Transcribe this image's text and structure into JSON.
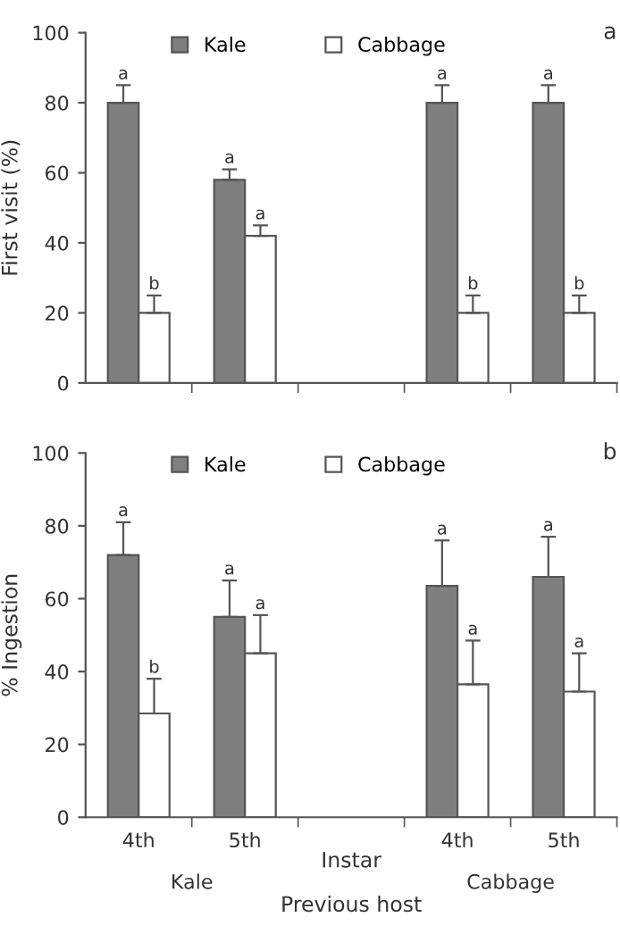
{
  "chart_data": [
    {
      "type": "bar",
      "title": "a",
      "ylabel": "First visit (%)",
      "categories": [
        null,
        null,
        null,
        null,
        null
      ],
      "ylim": [
        0,
        100
      ],
      "yticks": [
        0,
        20,
        40,
        60,
        80,
        100
      ],
      "legend": "top",
      "grid": false,
      "series": [
        {
          "name": "Kale",
          "color": "#7f7f7f",
          "values": [
            80,
            58,
            null,
            80,
            80
          ],
          "errors": [
            [
              80,
              85
            ],
            [
              58,
              61
            ],
            null,
            [
              80,
              85
            ],
            [
              80,
              85
            ]
          ],
          "value_labels": [
            "a",
            "a",
            null,
            "a",
            "a"
          ]
        },
        {
          "name": "Cabbage",
          "color": "#ffffff",
          "values": [
            20,
            42,
            null,
            20,
            20
          ],
          "errors": [
            [
              20,
              25
            ],
            [
              42,
              45
            ],
            null,
            [
              20,
              25
            ],
            [
              20,
              25
            ]
          ],
          "value_labels": [
            "b",
            "a",
            null,
            "b",
            "b"
          ]
        }
      ]
    },
    {
      "type": "bar",
      "title": "b",
      "ylabel": "% Ingestion",
      "xlabel": "Instar",
      "categories": [
        "4th",
        "5th",
        null,
        "4th",
        "5th"
      ],
      "ylim": [
        0,
        100
      ],
      "yticks": [
        0,
        20,
        40,
        60,
        80,
        100
      ],
      "legend": "top",
      "grid": false,
      "annotations": [
        "Kale",
        "Cabbage",
        "Previous host"
      ],
      "series": [
        {
          "name": "Kale",
          "color": "#7f7f7f",
          "values": [
            72,
            55,
            null,
            63.5,
            66
          ],
          "errors": [
            [
              72,
              81
            ],
            [
              55,
              65
            ],
            null,
            [
              63.5,
              76
            ],
            [
              66,
              77
            ]
          ],
          "value_labels": [
            "a",
            "a",
            null,
            "a",
            "a"
          ]
        },
        {
          "name": "Cabbage",
          "color": "#ffffff",
          "values": [
            28.5,
            45,
            null,
            36.5,
            34.5
          ],
          "errors": [
            [
              28.5,
              38
            ],
            [
              45,
              55.5
            ],
            null,
            [
              36.5,
              48.5
            ],
            [
              34.5,
              45
            ]
          ],
          "value_labels": [
            "b",
            "a",
            null,
            "a",
            "a"
          ]
        }
      ]
    }
  ]
}
